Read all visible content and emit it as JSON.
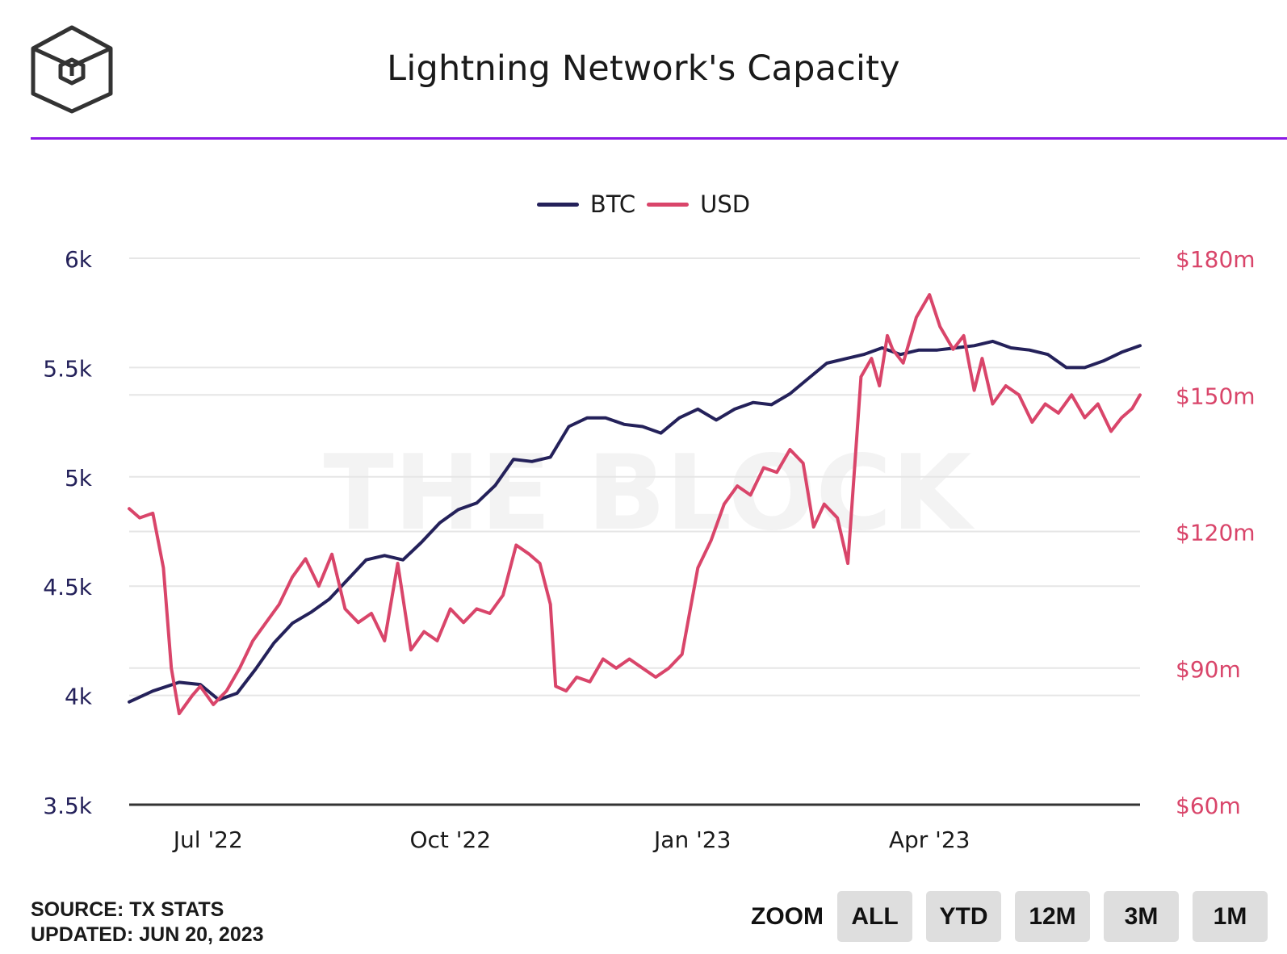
{
  "header": {
    "title": "Lightning Network's Capacity",
    "logo_icon": "the-block-cube-logo",
    "accent_color": "#8b18e6"
  },
  "watermark": "THE BLOCK",
  "footer": {
    "source": "SOURCE: TX STATS",
    "updated": "UPDATED: JUN 20, 2023"
  },
  "zoom": {
    "label": "ZOOM",
    "buttons": [
      "ALL",
      "YTD",
      "12M",
      "3M",
      "1M"
    ]
  },
  "chart_data": {
    "type": "line",
    "title": "Lightning Network's Capacity",
    "legend_position": "top-center",
    "grid": true,
    "x_ticks": [
      "Jul '22",
      "Oct '22",
      "Jan '23",
      "Apr '23"
    ],
    "x_tick_dates": [
      "2022-07-01",
      "2022-10-01",
      "2023-01-01",
      "2023-04-01"
    ],
    "xlim": [
      "2022-06-01",
      "2023-06-20"
    ],
    "left_axis": {
      "ylim": [
        3500,
        6000
      ],
      "ticks": [
        "3.5k",
        "4k",
        "4.5k",
        "5k",
        "5.5k",
        "6k"
      ],
      "tick_values": [
        3500,
        4000,
        4500,
        5000,
        5500,
        6000
      ]
    },
    "right_axis": {
      "ylim": [
        60,
        180
      ],
      "ticks": [
        "$60m",
        "$90m",
        "$120m",
        "$150m",
        "$180m"
      ],
      "tick_values": [
        60,
        90,
        120,
        150,
        180
      ]
    },
    "series": [
      {
        "name": "BTC",
        "axis": "left",
        "color": "#24215a",
        "x": [
          "2022-06-01",
          "2022-06-10",
          "2022-06-20",
          "2022-06-28",
          "2022-07-05",
          "2022-07-12",
          "2022-07-19",
          "2022-07-26",
          "2022-08-02",
          "2022-08-09",
          "2022-08-16",
          "2022-08-23",
          "2022-08-30",
          "2022-09-06",
          "2022-09-13",
          "2022-09-20",
          "2022-09-27",
          "2022-10-04",
          "2022-10-11",
          "2022-10-18",
          "2022-10-25",
          "2022-11-01",
          "2022-11-08",
          "2022-11-15",
          "2022-11-22",
          "2022-11-29",
          "2022-12-06",
          "2022-12-13",
          "2022-12-20",
          "2022-12-27",
          "2023-01-03",
          "2023-01-10",
          "2023-01-17",
          "2023-01-24",
          "2023-01-31",
          "2023-02-07",
          "2023-02-14",
          "2023-02-21",
          "2023-02-28",
          "2023-03-07",
          "2023-03-14",
          "2023-03-21",
          "2023-03-28",
          "2023-04-04",
          "2023-04-11",
          "2023-04-18",
          "2023-04-25",
          "2023-05-02",
          "2023-05-09",
          "2023-05-16",
          "2023-05-23",
          "2023-05-30",
          "2023-06-06",
          "2023-06-13",
          "2023-06-20"
        ],
        "values": [
          3970,
          4020,
          4060,
          4050,
          3980,
          4010,
          4120,
          4240,
          4330,
          4380,
          4440,
          4530,
          4620,
          4640,
          4620,
          4700,
          4790,
          4850,
          4880,
          4960,
          5080,
          5070,
          5090,
          5230,
          5270,
          5270,
          5240,
          5230,
          5200,
          5270,
          5310,
          5260,
          5310,
          5340,
          5330,
          5380,
          5450,
          5520,
          5540,
          5560,
          5590,
          5560,
          5580,
          5580,
          5590,
          5600,
          5620,
          5590,
          5580,
          5560,
          5500,
          5500,
          5530,
          5570,
          5600
        ]
      },
      {
        "name": "USD",
        "axis": "right",
        "color": "#d9456a",
        "x": [
          "2022-06-01",
          "2022-06-05",
          "2022-06-10",
          "2022-06-14",
          "2022-06-17",
          "2022-06-20",
          "2022-06-25",
          "2022-06-28",
          "2022-07-03",
          "2022-07-08",
          "2022-07-13",
          "2022-07-18",
          "2022-07-23",
          "2022-07-28",
          "2022-08-02",
          "2022-08-07",
          "2022-08-12",
          "2022-08-17",
          "2022-08-22",
          "2022-08-27",
          "2022-09-01",
          "2022-09-06",
          "2022-09-11",
          "2022-09-16",
          "2022-09-21",
          "2022-09-26",
          "2022-10-01",
          "2022-10-06",
          "2022-10-11",
          "2022-10-16",
          "2022-10-21",
          "2022-10-26",
          "2022-10-31",
          "2022-11-04",
          "2022-11-08",
          "2022-11-10",
          "2022-11-14",
          "2022-11-18",
          "2022-11-23",
          "2022-11-28",
          "2022-12-03",
          "2022-12-08",
          "2022-12-13",
          "2022-12-18",
          "2022-12-23",
          "2022-12-28",
          "2023-01-03",
          "2023-01-08",
          "2023-01-13",
          "2023-01-18",
          "2023-01-23",
          "2023-01-28",
          "2023-02-02",
          "2023-02-07",
          "2023-02-12",
          "2023-02-16",
          "2023-02-20",
          "2023-02-25",
          "2023-03-01",
          "2023-03-06",
          "2023-03-10",
          "2023-03-13",
          "2023-03-16",
          "2023-03-18",
          "2023-03-22",
          "2023-03-27",
          "2023-04-01",
          "2023-04-05",
          "2023-04-10",
          "2023-04-14",
          "2023-04-18",
          "2023-04-21",
          "2023-04-25",
          "2023-04-30",
          "2023-05-05",
          "2023-05-10",
          "2023-05-15",
          "2023-05-20",
          "2023-05-25",
          "2023-05-30",
          "2023-06-04",
          "2023-06-09",
          "2023-06-13",
          "2023-06-17",
          "2023-06-20"
        ],
        "values": [
          125,
          123,
          124,
          112,
          90,
          80,
          84,
          86,
          82,
          85,
          90,
          96,
          100,
          104,
          110,
          114,
          108,
          115,
          103,
          100,
          102,
          96,
          113,
          94,
          98,
          96,
          103,
          100,
          103,
          102,
          106,
          117,
          115,
          113,
          104,
          86,
          85,
          88,
          87,
          92,
          90,
          92,
          90,
          88,
          90,
          93,
          112,
          118,
          126,
          130,
          128,
          134,
          133,
          138,
          135,
          121,
          126,
          123,
          113,
          154,
          158,
          152,
          163,
          160,
          157,
          167,
          172,
          165,
          160,
          163,
          151,
          158,
          148,
          152,
          150,
          144,
          148,
          146,
          150,
          145,
          148,
          142,
          145,
          147,
          150
        ]
      }
    ]
  }
}
